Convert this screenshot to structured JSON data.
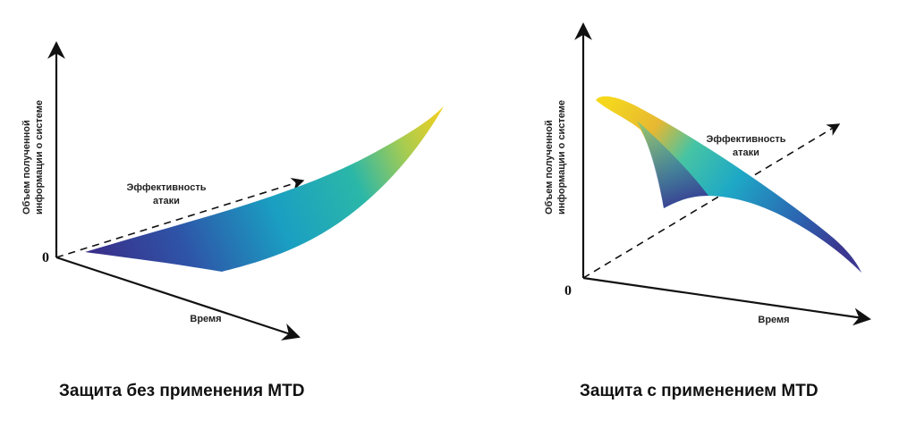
{
  "panels": [
    {
      "id": "without-mtd",
      "axis_vertical_line1": "Объем полученной",
      "axis_vertical_line2": "информации о системе",
      "axis_attack_line1": "Эффективность",
      "axis_attack_line2": "атаки",
      "axis_time": "Время",
      "origin": "0",
      "caption": "Защита без применения MTD"
    },
    {
      "id": "with-mtd",
      "axis_vertical_line1": "Объем полученной",
      "axis_vertical_line2": "информации о системе",
      "axis_attack_line1": "Эффективность",
      "axis_attack_line2": "атаки",
      "axis_time": "Время",
      "origin": "0",
      "caption": "Защита с применением MTD"
    }
  ],
  "colors": {
    "surface_low": "#3b2f8f",
    "surface_mid": "#1aa6c0",
    "surface_high": "#f2d21c",
    "axis": "#111111"
  }
}
